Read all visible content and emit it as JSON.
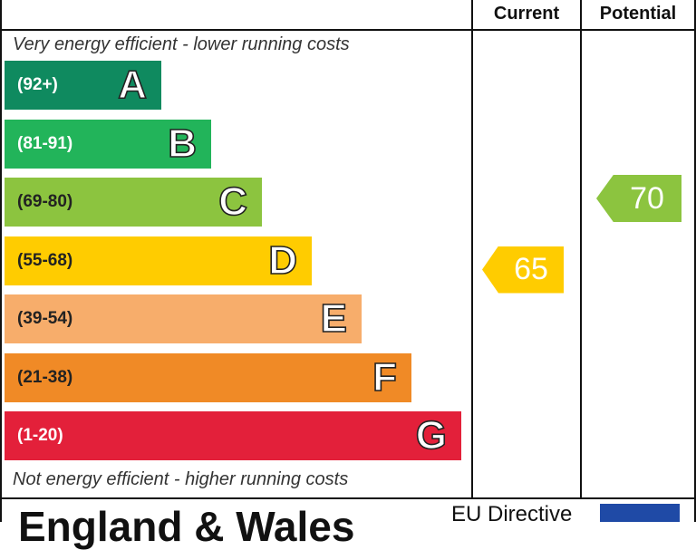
{
  "header": {
    "current_label": "Current",
    "potential_label": "Potential"
  },
  "captions": {
    "top": "Very energy efficient - lower running costs",
    "bottom": "Not energy efficient - higher running costs"
  },
  "chart_data": {
    "type": "bar",
    "categories": [
      "A",
      "B",
      "C",
      "D",
      "E",
      "F",
      "G"
    ],
    "ranges": [
      "(92+)",
      "(81-91)",
      "(69-80)",
      "(55-68)",
      "(39-54)",
      "(21-38)",
      "(1-20)"
    ],
    "colors": [
      "#0f8a5f",
      "#22b45a",
      "#8cc43f",
      "#ffcc00",
      "#f7ad6b",
      "#f08a26",
      "#e3203a"
    ],
    "range_text_colors": [
      "#ffffff",
      "#ffffff",
      "#222222",
      "#222222",
      "#222222",
      "#222222",
      "#ffffff"
    ],
    "current": {
      "value": "65",
      "band": "D",
      "color": "#ffcc00"
    },
    "potential": {
      "value": "70",
      "band": "C",
      "color": "#8cc43f"
    }
  },
  "footer": {
    "title": "England & Wales",
    "eu_directive": "EU Directive"
  }
}
